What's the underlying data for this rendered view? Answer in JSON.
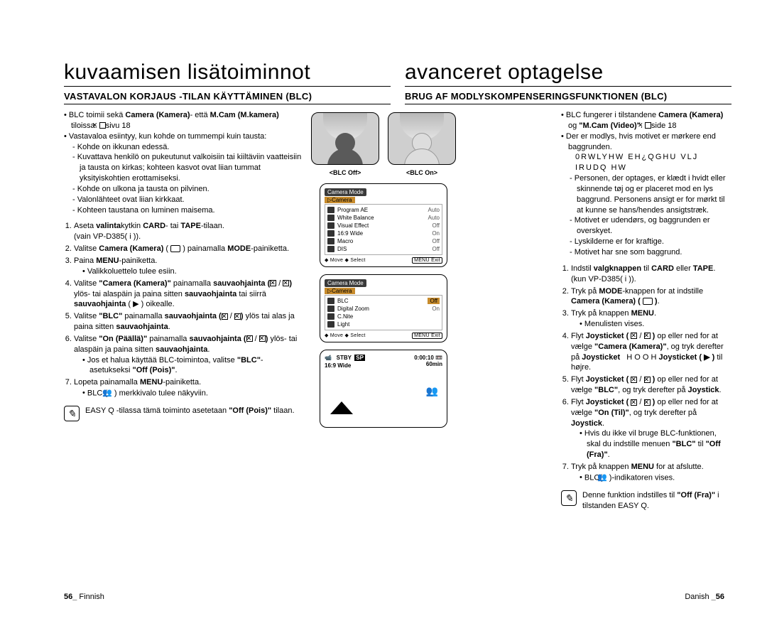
{
  "left": {
    "title": "kuvaamisen lisätoiminnot",
    "subtitle": "VASTAVALON KORJAUS -TILAN KÄYTTÄMINEN (BLC)",
    "bullets": {
      "b1": "BLC toimii sekä Camera (Kamera)- että M.Cam (M.kamera) tiloissa. ➥sivu 18",
      "b2": "Vastavaloa esiintyy, kun kohde on tummempi kuin tausta:",
      "d1": "Kohde on ikkunan edessä.",
      "d2": "Kuvattava henkilö on pukeutunut valkoisiin tai kiiltäviin vaatteisiin ja tausta on kirkas; kohteen kasvot ovat liian tummat yksityiskohtien erottamiseksi.",
      "d3": "Kohde on ulkona ja tausta on pilvinen.",
      "d4": "Valonlähteet ovat liian kirkkaat.",
      "d5": "Kohteen taustana on luminen maisema."
    },
    "steps": {
      "s1a": "Aseta valintakytkin CARD- tai TAPE-tilaan.",
      "s1b": "(vain VP-D385( i )).",
      "s2": "Valitse Camera (Kamera) ( 📷 ) painamalla MODE-painiketta.",
      "s3a": "Paina MENU-painiketta.",
      "s3b": "Valikkoluettelo tulee esiin.",
      "s4": "Valitse \"Camera (Kamera)\" painamalla sauvaohjainta (▲ / ▼) ylös- tai alaspäin ja paina sitten sauvaohjainta tai siirrä sauvaohjainta ( ▶ ) oikealle.",
      "s5": "Valitse \"BLC\" painamalla sauvaohjainta (▲ / ▼) ylös tai alas ja paina sitten sauvaohjainta.",
      "s6": "Valitse \"On (Päällä)\" painamalla sauvaohjainta (▲ / ▼) ylös- tai alaspäin ja paina sitten sauvaohjainta.",
      "s6b": "Jos et halua käyttää BLC-toimintoa, valitse \"BLC\"-asetukseksi \"Off (Pois)\".",
      "s7": "Lopeta painamalla MENU-painiketta.",
      "s7b": "BLC ( 👥 ) merkkivalo tulee näkyviin."
    },
    "note": "EASY Q -tilassa tämä toiminto asetetaan \"Off (Pois)\" tilaan.",
    "pagenum": "56_",
    "pagelang": "Finnish"
  },
  "right": {
    "title": "avanceret optagelse",
    "subtitle": "BRUG AF MODLYSKOMPENSERINGSFUNKTIONEN (BLC)",
    "bullets": {
      "b1": "BLC fungerer i tilstandene Camera (Kamera) og \"M.Cam (Video)\". ➥side 18",
      "b2": "Der er modlys, hvis motivet er mørkere end baggrunden.",
      "gar": "0RWLYHW EH¿QGHU VLJ IRUDQ HW",
      "d1": "Personen, der optages, er klædt i hvidt eller skinnende tøj og er placeret mod en lys baggrund. Personens ansigt er for mørkt til at kunne se hans/hendes ansigtstræk.",
      "d2": "Motivet er udendørs, og baggrunden er overskyet.",
      "d3": "Lyskilderne er for kraftige.",
      "d4": "Motivet har sne som baggrund."
    },
    "steps": {
      "s1a": "Indstil valgknappen til CARD eller TAPE.",
      "s1b": "(kun VP-D385( i )).",
      "s2": "Tryk på MODE-knappen for at indstille Camera (Kamera) ( 📷 ).",
      "s3a": "Tryk på knappen MENU.",
      "s3b": "Menulisten vises.",
      "s4": "Flyt Joysticket ( ▲ / ▼ ) op eller ned for at vælge \"Camera (Kamera)\", og tryk derefter på Joysticket   H O O H Joysticket ( ▶ ) til højre.",
      "s5": "Flyt Joysticket ( ▲ / ▼ ) op eller ned for at vælge \"BLC\", og tryk derefter på Joystick.",
      "s6": "Flyt Joysticket ( ▲ / ▼ ) op eller ned for at vælge \"On (Til)\", og tryk derefter på Joystick.",
      "s6b": "Hvis du ikke vil bruge BLC-funktionen, skal du indstille menuen \"BLC\" til \"Off (Fra)\".",
      "s7": "Tryk på knappen MENU for at afslutte.",
      "s7b": "BLC( 👥 )-indikatoren vises."
    },
    "note": "Denne funktion indstilles til \"Off (Fra)\" i tilstanden EASY Q.",
    "pagenum": "_56",
    "pagelang": "Danish "
  },
  "center": {
    "blc_off": "<BLC Off>",
    "blc_on": "<BLC On>",
    "osd1": {
      "mode": "Camera Mode",
      "cat": "▷Camera",
      "rows": [
        {
          "l": "Program AE",
          "v": "Auto"
        },
        {
          "l": "White Balance",
          "v": "Auto"
        },
        {
          "l": "Visual Effect",
          "v": "Off"
        },
        {
          "l": "16:9 Wide",
          "v": "On"
        },
        {
          "l": "Macro",
          "v": "Off"
        },
        {
          "l": "DIS",
          "v": "Off"
        }
      ],
      "move": "◆ Move  ◆ Select",
      "exit": "MENU Exit"
    },
    "osd2": {
      "mode": "Camera Mode",
      "cat": "▷Camera",
      "rows": [
        {
          "l": "BLC",
          "v": "Off",
          "hl": true
        },
        {
          "l": "Digital Zoom",
          "v": "On"
        },
        {
          "l": "C.Nite",
          "v": ""
        },
        {
          "l": "Light",
          "v": ""
        }
      ],
      "move": "◆ Move  ◆ Select",
      "exit": "MENU Exit"
    },
    "osd3": {
      "stby": "STBY",
      "sp": "SP",
      "time": "0:00:10",
      "wide": "16:9 Wide",
      "min": "60min",
      "blc": "👥"
    }
  }
}
